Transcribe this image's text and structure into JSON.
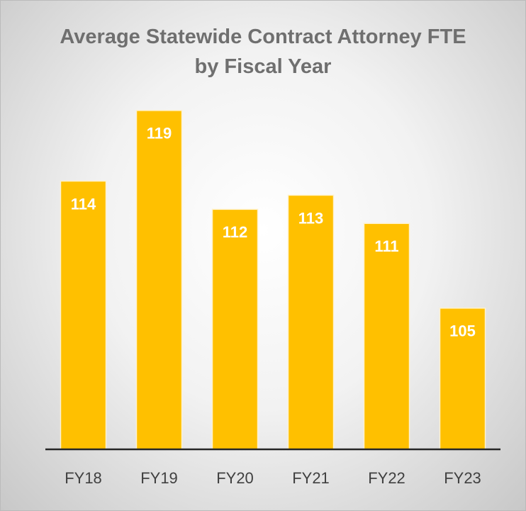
{
  "chart_data": {
    "type": "bar",
    "title": "Average Statewide Contract Attorney FTE by Fiscal Year",
    "categories": [
      "FY18",
      "FY19",
      "FY20",
      "FY21",
      "FY22",
      "FY23"
    ],
    "values": [
      114,
      119,
      112,
      113,
      111,
      105
    ],
    "color": "#ffc000",
    "ylim": [
      95,
      120
    ]
  }
}
